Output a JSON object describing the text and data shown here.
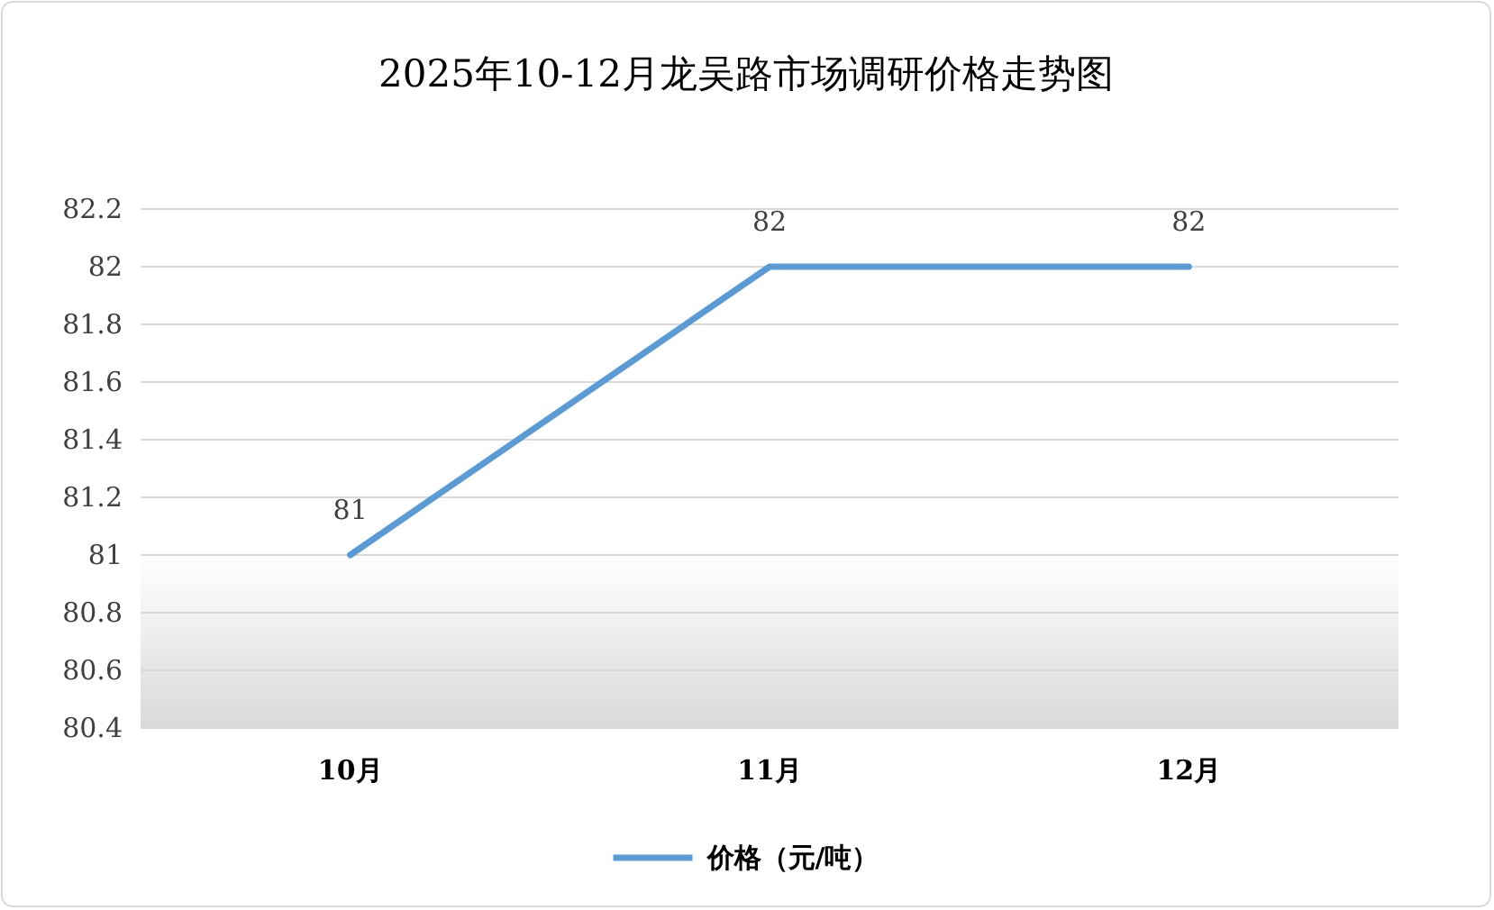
{
  "chart_data": {
    "type": "line",
    "title": "2025年10-12月龙吴路市场调研价格走势图",
    "categories": [
      "10月",
      "11月",
      "12月"
    ],
    "series": [
      {
        "name": "价格（元/吨）",
        "color": "#5b9bd5",
        "values": [
          81,
          82,
          82
        ]
      }
    ],
    "ylim": [
      80.4,
      82.2
    ],
    "yticks": [
      {
        "value": 80.4,
        "label": "80.4"
      },
      {
        "value": 80.6,
        "label": "80.6"
      },
      {
        "value": 80.8,
        "label": "80.8"
      },
      {
        "value": 81,
        "label": "81"
      },
      {
        "value": 81.2,
        "label": "81.2"
      },
      {
        "value": 81.4,
        "label": "81.4"
      },
      {
        "value": 81.6,
        "label": "81.6"
      },
      {
        "value": 81.8,
        "label": "81.8"
      },
      {
        "value": 82,
        "label": "82"
      },
      {
        "value": 82.2,
        "label": "82.2"
      }
    ],
    "bands": [
      {
        "axis": "y",
        "from": 80.4,
        "to": 81,
        "color": "#d9d9d9"
      }
    ],
    "grid": "y",
    "legend": "bottom",
    "data_labels": true,
    "marker": "none",
    "line_style": "solid"
  }
}
